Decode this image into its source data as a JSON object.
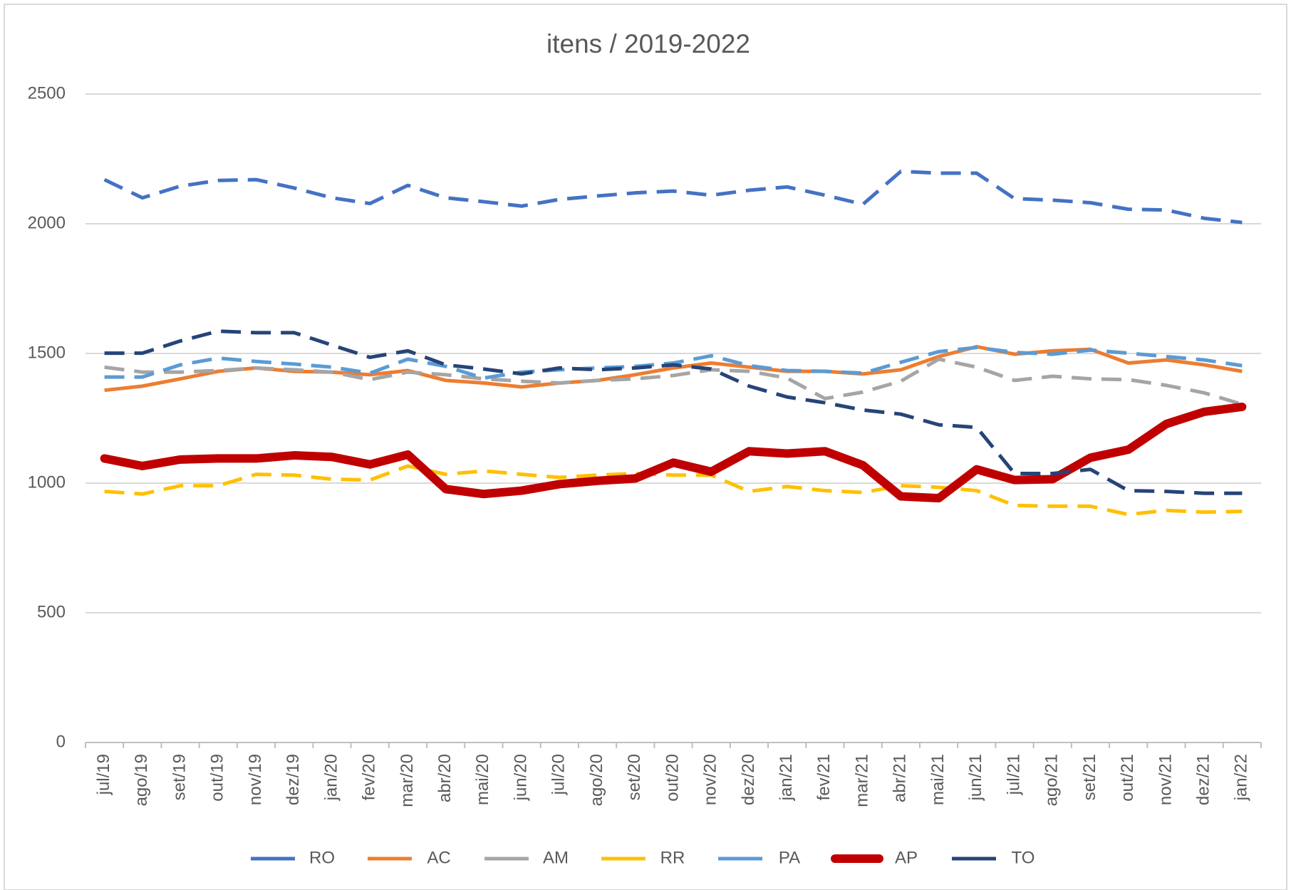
{
  "chart_data": {
    "type": "line",
    "title": "itens / 2019-2022",
    "categories": [
      "jul/19",
      "ago/19",
      "set/19",
      "out/19",
      "nov/19",
      "dez/19",
      "jan/20",
      "fev/20",
      "mar/20",
      "abr/20",
      "mai/20",
      "jun/20",
      "jul/20",
      "ago/20",
      "set/20",
      "out/20",
      "nov/20",
      "dez/20",
      "jan/21",
      "fev/21",
      "mar/21",
      "abr/21",
      "mai/21",
      "jun/21",
      "jul/21",
      "ago/21",
      "set/21",
      "out/21",
      "nov/21",
      "dez/21",
      "jan/22"
    ],
    "ylim": [
      0,
      2500
    ],
    "yticks": [
      0,
      500,
      1000,
      1500,
      2000,
      2500
    ],
    "grid": true,
    "legend": "bottom",
    "series": [
      {
        "name": "RO",
        "color": "#4472c4",
        "dashed": true,
        "values": [
          2170,
          2100,
          2145,
          2167,
          2170,
          2138,
          2100,
          2078,
          2148,
          2100,
          2085,
          2068,
          2094,
          2107,
          2119,
          2126,
          2110,
          2129,
          2142,
          2110,
          2075,
          2202,
          2195,
          2195,
          2097,
          2091,
          2081,
          2056,
          2053,
          2021,
          2005
        ]
      },
      {
        "name": "AC",
        "color": "#ed7d31",
        "dashed": false,
        "values": [
          1358,
          1374,
          1402,
          1431,
          1444,
          1431,
          1428,
          1418,
          1434,
          1396,
          1386,
          1371,
          1386,
          1396,
          1418,
          1444,
          1463,
          1447,
          1431,
          1431,
          1421,
          1437,
          1488,
          1526,
          1497,
          1510,
          1516,
          1463,
          1475,
          1456,
          1431
        ]
      },
      {
        "name": "AM",
        "color": "#a5a5a5",
        "dashed": true,
        "values": [
          1447,
          1428,
          1428,
          1434,
          1444,
          1437,
          1428,
          1399,
          1428,
          1418,
          1402,
          1393,
          1386,
          1396,
          1402,
          1415,
          1437,
          1431,
          1405,
          1326,
          1351,
          1393,
          1478,
          1447,
          1396,
          1412,
          1402,
          1399,
          1377,
          1348,
          1304
        ]
      },
      {
        "name": "RR",
        "color": "#ffc000",
        "dashed": true,
        "values": [
          968,
          958,
          990,
          990,
          1034,
          1031,
          1015,
          1012,
          1066,
          1034,
          1047,
          1034,
          1022,
          1031,
          1037,
          1031,
          1031,
          968,
          987,
          971,
          964,
          990,
          984,
          971,
          914,
          911,
          911,
          879,
          895,
          888,
          891
        ]
      },
      {
        "name": "PA",
        "color": "#5b9bd5",
        "dashed": true,
        "values": [
          1409,
          1409,
          1456,
          1482,
          1469,
          1459,
          1447,
          1424,
          1478,
          1450,
          1405,
          1428,
          1437,
          1444,
          1450,
          1463,
          1491,
          1453,
          1434,
          1431,
          1424,
          1466,
          1507,
          1523,
          1504,
          1497,
          1513,
          1501,
          1488,
          1475,
          1453
        ]
      },
      {
        "name": "AP",
        "color": "#c00000",
        "dashed": false,
        "thick": true,
        "values": [
          1095,
          1066,
          1091,
          1095,
          1095,
          1107,
          1101,
          1072,
          1110,
          977,
          958,
          971,
          996,
          1009,
          1018,
          1079,
          1044,
          1123,
          1114,
          1123,
          1069,
          949,
          942,
          1053,
          1012,
          1015,
          1098,
          1129,
          1228,
          1275,
          1294
        ]
      },
      {
        "name": "TO",
        "color": "#264478",
        "dashed": true,
        "values": [
          1501,
          1501,
          1548,
          1586,
          1580,
          1580,
          1532,
          1485,
          1510,
          1456,
          1440,
          1421,
          1444,
          1437,
          1444,
          1456,
          1440,
          1374,
          1332,
          1310,
          1282,
          1266,
          1225,
          1215,
          1037,
          1037,
          1053,
          971,
          968,
          961,
          961
        ]
      }
    ]
  }
}
